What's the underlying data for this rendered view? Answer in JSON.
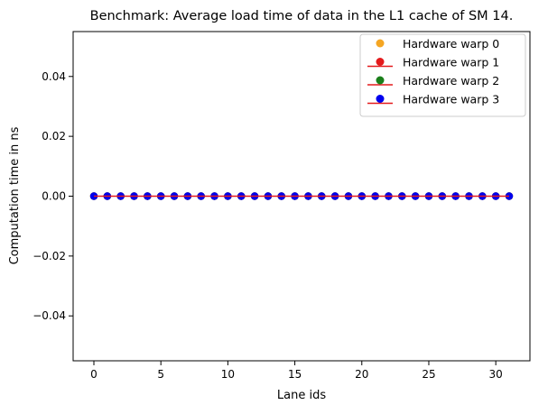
{
  "chart_data": {
    "type": "scatter",
    "title": "Benchmark: Average load time of data in the L1 cache of SM 14.",
    "xlabel": "Lane ids",
    "ylabel": "Computation time in ns",
    "xlim": [
      -1.55,
      32.55
    ],
    "ylim": [
      -0.055,
      0.055
    ],
    "x_ticks": [
      0,
      5,
      10,
      15,
      20,
      25,
      30
    ],
    "x_tick_labels": [
      "0",
      "5",
      "10",
      "15",
      "20",
      "25",
      "30"
    ],
    "y_ticks": [
      0.04,
      0.02,
      0.0,
      -0.02,
      -0.04
    ],
    "y_tick_labels": [
      "0.04",
      "0.02",
      "0.00",
      "−0.02",
      "−0.04"
    ],
    "grid": false,
    "legend_position": "top-right",
    "x": [
      0,
      1,
      2,
      3,
      4,
      5,
      6,
      7,
      8,
      9,
      10,
      11,
      12,
      13,
      14,
      15,
      16,
      17,
      18,
      19,
      20,
      21,
      22,
      23,
      24,
      25,
      26,
      27,
      28,
      29,
      30,
      31
    ],
    "series": [
      {
        "name": "Hardware warp 0",
        "color": "#f5a623",
        "marker": "dot",
        "line": true,
        "values": [
          0,
          0,
          0,
          0,
          0,
          0,
          0,
          0,
          0,
          0,
          0,
          0,
          0,
          0,
          0,
          0,
          0,
          0,
          0,
          0,
          0,
          0,
          0,
          0,
          0,
          0,
          0,
          0,
          0,
          0,
          0,
          0
        ]
      },
      {
        "name": "Hardware warp 1",
        "color": "#e41a1c",
        "marker": "dot",
        "line": true,
        "values": [
          0,
          0,
          0,
          0,
          0,
          0,
          0,
          0,
          0,
          0,
          0,
          0,
          0,
          0,
          0,
          0,
          0,
          0,
          0,
          0,
          0,
          0,
          0,
          0,
          0,
          0,
          0,
          0,
          0,
          0,
          0,
          0
        ]
      },
      {
        "name": "Hardware warp 2",
        "color": "#1a7f1a",
        "marker": "dot",
        "line": true,
        "values": [
          0,
          0,
          0,
          0,
          0,
          0,
          0,
          0,
          0,
          0,
          0,
          0,
          0,
          0,
          0,
          0,
          0,
          0,
          0,
          0,
          0,
          0,
          0,
          0,
          0,
          0,
          0,
          0,
          0,
          0,
          0,
          0
        ]
      },
      {
        "name": "Hardware warp 3",
        "color": "#0000ee",
        "marker": "dot",
        "line": true,
        "values": [
          0,
          0,
          0,
          0,
          0,
          0,
          0,
          0,
          0,
          0,
          0,
          0,
          0,
          0,
          0,
          0,
          0,
          0,
          0,
          0,
          0,
          0,
          0,
          0,
          0,
          0,
          0,
          0,
          0,
          0,
          0,
          0
        ]
      }
    ],
    "legend": [
      {
        "label": "Hardware warp 0",
        "symbol": "dot",
        "color": "#f5a623"
      },
      {
        "label": "Hardware warp 1",
        "symbol": "line-dot",
        "color": "#e41a1c"
      },
      {
        "label": "Hardware warp 2",
        "symbol": "line-dot",
        "color": "#1a7f1a"
      },
      {
        "label": "Hardware warp 3",
        "symbol": "line-dot",
        "color": "#0000ee"
      }
    ],
    "legend_line_color": "#e41a1c"
  }
}
